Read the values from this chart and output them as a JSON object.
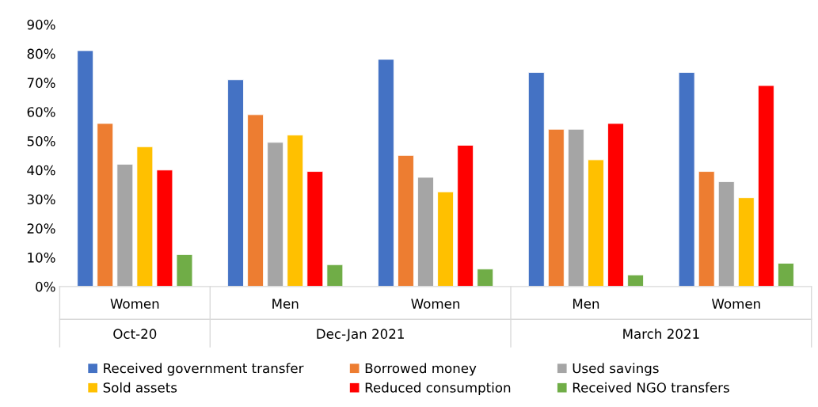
{
  "chart_data": {
    "type": "bar",
    "categories": [
      "Women",
      "Men",
      "Women",
      "Men",
      "Women"
    ],
    "series": [
      {
        "name": "Received government transfer",
        "color": "#4472c4",
        "values": [
          81,
          71,
          78,
          73.5,
          73.5
        ]
      },
      {
        "name": "Borrowed money",
        "color": "#ed7d31",
        "values": [
          56,
          59,
          45,
          54,
          39.5
        ]
      },
      {
        "name": "Used savings",
        "color": "#a5a5a5",
        "values": [
          42,
          49.5,
          37.5,
          54,
          36
        ]
      },
      {
        "name": "Sold assets",
        "color": "#ffc000",
        "values": [
          48,
          52,
          32.5,
          43.5,
          30.5
        ]
      },
      {
        "name": "Reduced consumption",
        "color": "#ff0000",
        "values": [
          40,
          39.5,
          48.5,
          56,
          69
        ]
      },
      {
        "name": "Received NGO transfers",
        "color": "#70ad47",
        "values": [
          11,
          7.5,
          6,
          4,
          8
        ]
      }
    ],
    "annotations": [
      "Oct-20",
      "Dec-Jan 2021",
      "March 2021"
    ],
    "ylim": [
      0,
      90
    ],
    "yticks": [
      {
        "value": 0,
        "label": "0%"
      },
      {
        "value": 10,
        "label": "10%"
      },
      {
        "value": 20,
        "label": "20%"
      },
      {
        "value": 30,
        "label": "30%"
      },
      {
        "value": 40,
        "label": "40%"
      },
      {
        "value": 50,
        "label": "50%"
      },
      {
        "value": 60,
        "label": "60%"
      },
      {
        "value": 70,
        "label": "70%"
      },
      {
        "value": 80,
        "label": "80%"
      },
      {
        "value": 90,
        "label": "90%"
      }
    ],
    "grid": false,
    "legend": "bottom"
  }
}
